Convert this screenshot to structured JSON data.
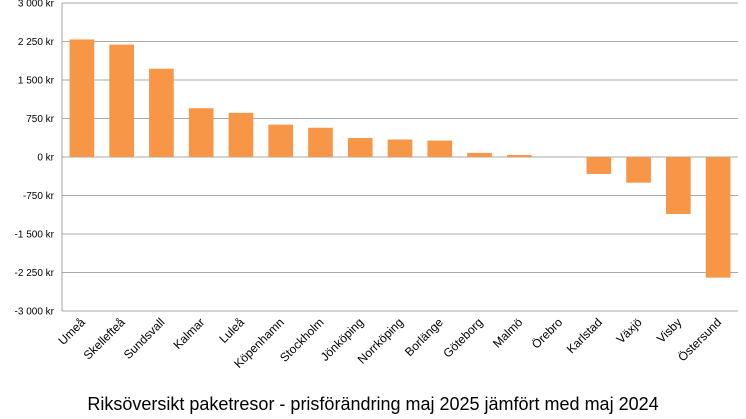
{
  "chart_data": {
    "type": "bar",
    "title": "Riksöversikt paketresor - prisförändring maj 2025 jämfört med maj 2024",
    "xlabel": "",
    "ylabel": "",
    "ylim": [
      -3000,
      3000
    ],
    "yticks": [
      3000,
      2250,
      1500,
      750,
      0,
      -750,
      -1500,
      -2250,
      -3000
    ],
    "ytick_labels": [
      "3 000 kr",
      "2 250 kr",
      "1 500 kr",
      "750 kr",
      "0 kr",
      "-750 kr",
      "-1 500 kr",
      "-2 250 kr",
      "-3 000 kr"
    ],
    "grid": true,
    "legend": "none",
    "bar_color": "#F79646",
    "categories": [
      "Umeå",
      "Skellefteå",
      "Sundsvall",
      "Kalmar",
      "Luleå",
      "Köpenhamn",
      "Stockholm",
      "Jönköping",
      "Norrköping",
      "Borlänge",
      "Göteborg",
      "Malmö",
      "Örebro",
      "Karlstad",
      "Växjö",
      "Visby",
      "Östersund"
    ],
    "values": [
      2290,
      2190,
      1720,
      950,
      860,
      630,
      570,
      370,
      340,
      320,
      80,
      40,
      0,
      -330,
      -500,
      -1110,
      -2350
    ]
  }
}
